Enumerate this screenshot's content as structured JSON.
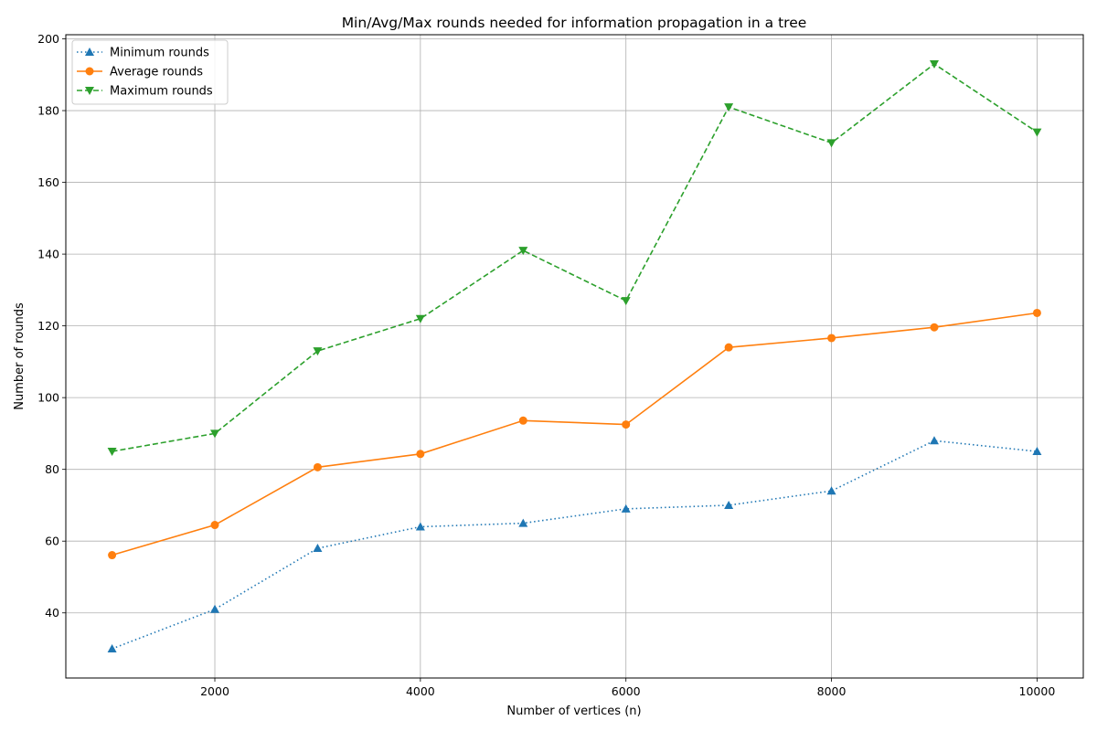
{
  "chart_data": {
    "type": "line",
    "title": "Min/Avg/Max rounds needed for information propagation in a tree",
    "xlabel": "Number of vertices (n)",
    "ylabel": "Number of rounds",
    "x": [
      1000,
      2000,
      3000,
      4000,
      5000,
      6000,
      7000,
      8000,
      9000,
      10000
    ],
    "xlim": [
      550,
      10450
    ],
    "ylim": [
      21.85,
      201.15
    ],
    "xticks": [
      2000,
      4000,
      6000,
      8000,
      10000
    ],
    "yticks": [
      40,
      60,
      80,
      100,
      120,
      140,
      160,
      180,
      200
    ],
    "grid": true,
    "legend_position": "upper-left",
    "series": [
      {
        "name": "Minimum rounds",
        "values": [
          30,
          41,
          58,
          64,
          65,
          69,
          70,
          74,
          88,
          85
        ],
        "color": "#1f77b4",
        "line_style": "dotted",
        "marker": "triangle-up"
      },
      {
        "name": "Average rounds",
        "values": [
          56.1,
          64.5,
          80.6,
          84.3,
          93.6,
          92.5,
          114.0,
          116.6,
          119.6,
          123.6
        ],
        "color": "#ff7f0e",
        "line_style": "solid",
        "marker": "circle"
      },
      {
        "name": "Maximum rounds",
        "values": [
          85,
          90,
          113,
          122,
          141,
          127,
          181,
          171,
          193,
          174
        ],
        "color": "#2ca02c",
        "line_style": "dashed",
        "marker": "triangle-down"
      }
    ]
  }
}
